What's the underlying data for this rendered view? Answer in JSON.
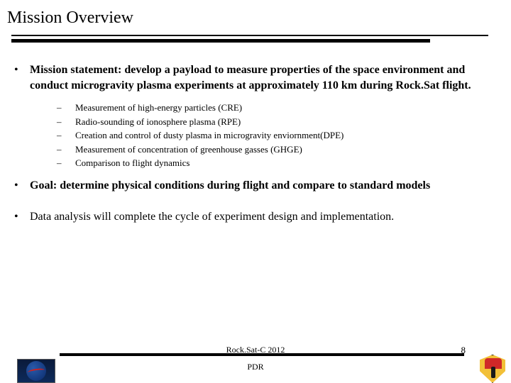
{
  "title": "Mission Overview",
  "bullets": {
    "b0": "Mission statement: develop a payload to measure properties of the space environment and conduct microgravity plasma experiments at approximately 110 km during Rock.Sat flight.",
    "b1": "Goal: determine physical conditions during flight and compare to standard models",
    "b2": "Data analysis will complete the cycle of experiment design and implementation."
  },
  "sub": {
    "s0": "Measurement of high-energy particles (CRE)",
    "s1": "Radio-sounding of ionosphere plasma (RPE)",
    "s2": "Creation and control of dusty plasma in microgravity enviornment(DPE)",
    "s3": "Measurement of concentration of greenhouse gasses (GHGE)",
    "s4": "Comparison to flight dynamics"
  },
  "footer": {
    "line1": "Rock.Sat-C 2012",
    "line2": "PDR",
    "page": "8"
  },
  "marks": {
    "bullet": "•",
    "dash": "–"
  }
}
